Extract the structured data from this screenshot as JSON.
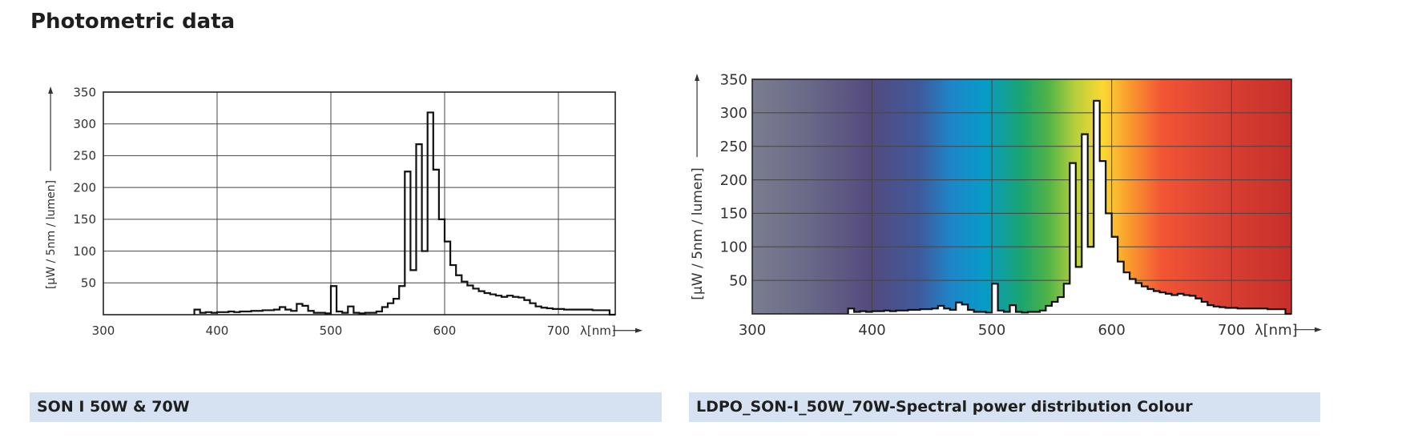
{
  "page": {
    "title": "Photometric data"
  },
  "captions": {
    "left": "SON I 50W & 70W",
    "right": "LDPO_SON-I_50W_70W-Spectral power distribution Colour"
  },
  "colors": {
    "caption_bg": "#d6e2f1",
    "line": "#1a1a1a",
    "grid": "#555555"
  },
  "chart_data": [
    {
      "type": "line",
      "title": "",
      "xlabel": "λ[nm]",
      "ylabel": "[µW / 5nm / lumen]",
      "xlim": [
        300,
        750
      ],
      "ylim": [
        0,
        350
      ],
      "x_ticks": [
        300,
        400,
        500,
        600,
        700
      ],
      "y_ticks": [
        50,
        100,
        150,
        200,
        250,
        300,
        350
      ],
      "grid": true,
      "background": "white",
      "series": [
        {
          "step": true,
          "x": [
            380,
            385,
            390,
            395,
            400,
            405,
            410,
            415,
            420,
            425,
            430,
            435,
            440,
            445,
            450,
            455,
            460,
            465,
            470,
            475,
            480,
            485,
            490,
            495,
            500,
            505,
            510,
            515,
            520,
            525,
            530,
            535,
            540,
            545,
            550,
            555,
            560,
            565,
            570,
            575,
            580,
            585,
            590,
            595,
            600,
            605,
            610,
            615,
            620,
            625,
            630,
            635,
            640,
            645,
            650,
            655,
            660,
            665,
            670,
            675,
            680,
            685,
            690,
            695,
            700,
            705,
            710,
            715,
            720,
            725,
            730,
            735,
            740,
            745
          ],
          "y": [
            8,
            3,
            4,
            3,
            4,
            4,
            5,
            4,
            5,
            5,
            6,
            6,
            7,
            7,
            8,
            12,
            8,
            6,
            17,
            14,
            6,
            3,
            3,
            2,
            45,
            5,
            3,
            13,
            3,
            2,
            3,
            3,
            5,
            12,
            18,
            25,
            45,
            225,
            70,
            268,
            100,
            318,
            228,
            150,
            115,
            78,
            62,
            52,
            46,
            41,
            37,
            34,
            32,
            30,
            28,
            30,
            28,
            27,
            23,
            18,
            13,
            11,
            10,
            9,
            9,
            8,
            8,
            8,
            8,
            8,
            7,
            7,
            7,
            0
          ]
        }
      ]
    },
    {
      "type": "line",
      "title": "",
      "xlabel": "λ[nm]",
      "ylabel": "[µW / 5nm / lumen]",
      "xlim": [
        300,
        750
      ],
      "ylim": [
        0,
        350
      ],
      "x_ticks": [
        300,
        400,
        500,
        600,
        700
      ],
      "y_ticks": [
        50,
        100,
        150,
        200,
        250,
        300,
        350
      ],
      "grid": true,
      "background": "visible spectrum colour gradient",
      "series": [
        {
          "step": true,
          "x": [
            380,
            385,
            390,
            395,
            400,
            405,
            410,
            415,
            420,
            425,
            430,
            435,
            440,
            445,
            450,
            455,
            460,
            465,
            470,
            475,
            480,
            485,
            490,
            495,
            500,
            505,
            510,
            515,
            520,
            525,
            530,
            535,
            540,
            545,
            550,
            555,
            560,
            565,
            570,
            575,
            580,
            585,
            590,
            595,
            600,
            605,
            610,
            615,
            620,
            625,
            630,
            635,
            640,
            645,
            650,
            655,
            660,
            665,
            670,
            675,
            680,
            685,
            690,
            695,
            700,
            705,
            710,
            715,
            720,
            725,
            730,
            735,
            740,
            745
          ],
          "y": [
            8,
            3,
            4,
            3,
            4,
            4,
            5,
            4,
            5,
            5,
            6,
            6,
            7,
            7,
            8,
            12,
            8,
            6,
            17,
            14,
            6,
            3,
            3,
            2,
            45,
            5,
            3,
            13,
            3,
            2,
            3,
            3,
            5,
            12,
            18,
            25,
            45,
            225,
            70,
            268,
            100,
            318,
            228,
            150,
            115,
            78,
            62,
            52,
            46,
            41,
            37,
            34,
            32,
            30,
            28,
            30,
            28,
            27,
            23,
            18,
            13,
            11,
            10,
            9,
            9,
            8,
            8,
            8,
            8,
            8,
            7,
            7,
            7,
            0
          ]
        }
      ]
    }
  ]
}
